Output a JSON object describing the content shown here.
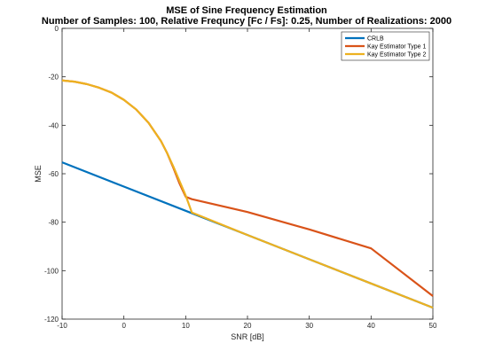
{
  "chart_data": {
    "type": "line",
    "title": "MSE of Sine Frequency Estimation",
    "subtitle": "Number of Samples: 100, Relative Frequncy [Fc / Fs]: 0.25, Number of Realizations: 2000",
    "xlabel": "SNR [dB]",
    "ylabel": "MSE",
    "xlim": [
      -10,
      50
    ],
    "ylim": [
      -120,
      0
    ],
    "xticks": [
      -10,
      0,
      10,
      20,
      30,
      40,
      50
    ],
    "yticks": [
      0,
      -20,
      -40,
      -60,
      -80,
      -100,
      -120
    ],
    "grid": false,
    "legend_position": "top-right",
    "series": [
      {
        "name": "CRLB",
        "color": "#0072BD",
        "x": [
          -10,
          0,
          10,
          20,
          30,
          40,
          50
        ],
        "y": [
          -55.3,
          -65.3,
          -75.3,
          -85.3,
          -95.3,
          -105.3,
          -115.3
        ]
      },
      {
        "name": "Kay Estimator Type 1",
        "color": "#D95319",
        "x": [
          -10,
          -8,
          -6,
          -4,
          -2,
          0,
          2,
          4,
          6,
          7,
          8,
          9,
          10,
          11,
          20,
          30,
          40,
          50
        ],
        "y": [
          -21.5,
          -22.0,
          -23.0,
          -24.5,
          -26.5,
          -29.5,
          -33.5,
          -39.0,
          -46.5,
          -51.5,
          -57.5,
          -64.0,
          -69.5,
          -70.5,
          -75.8,
          -83.0,
          -90.8,
          -110.5
        ]
      },
      {
        "name": "Kay Estimator Type 2",
        "color": "#EDB120",
        "x": [
          -10,
          -8,
          -6,
          -4,
          -2,
          0,
          2,
          4,
          6,
          7,
          8,
          9,
          10,
          11,
          20,
          30,
          40,
          50
        ],
        "y": [
          -21.5,
          -22.0,
          -23.0,
          -24.5,
          -26.5,
          -29.5,
          -33.5,
          -39.0,
          -46.5,
          -51.5,
          -57.0,
          -63.0,
          -69.0,
          -76.0,
          -85.3,
          -95.3,
          -105.3,
          -115.3
        ]
      }
    ]
  }
}
